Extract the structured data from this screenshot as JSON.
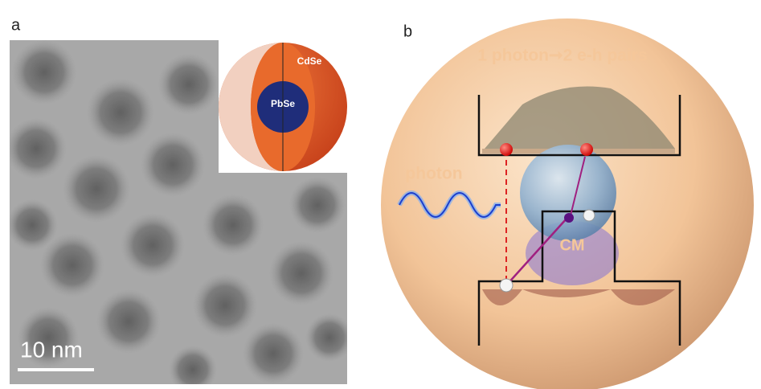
{
  "panel_a": {
    "label": "a",
    "inset": {
      "shell": "CdSe",
      "core": "PbSe"
    },
    "scale_bar": "10 nm"
  },
  "panel_b": {
    "label": "b",
    "title": "1 photon➞2 e-h pairs",
    "photon": "photon",
    "process": "CM"
  }
}
